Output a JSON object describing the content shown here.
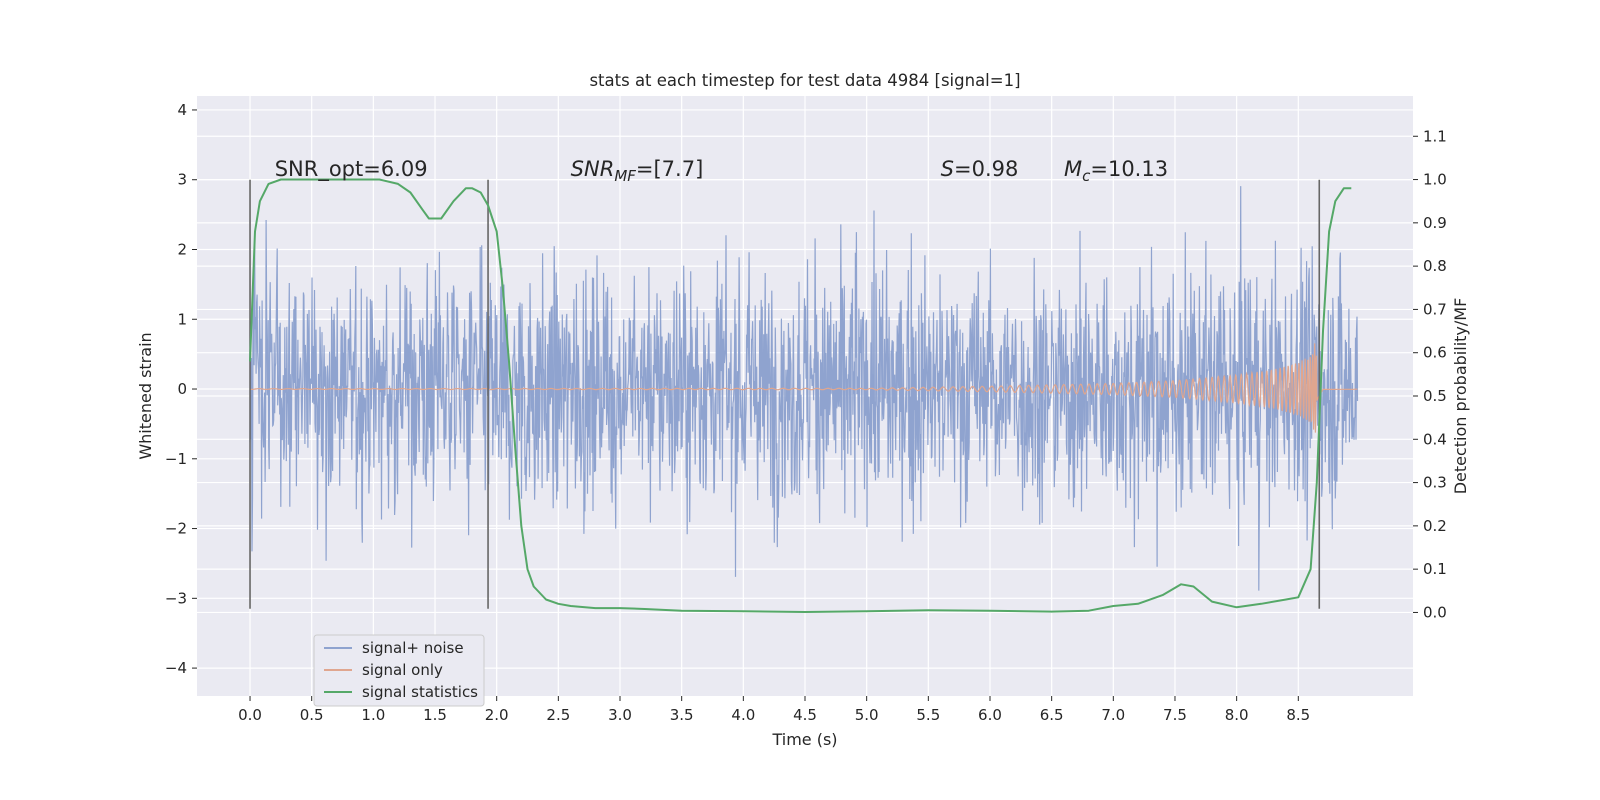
{
  "chart_data": {
    "type": "line",
    "title": "stats at each timestep for test data 4984 [signal=1]",
    "xlabel": "Time (s)",
    "ylabel": "Whitened strain",
    "y2label": "Detection probability/MF",
    "xlim": [
      -0.43,
      9.43
    ],
    "ylim": [
      -4.4,
      4.2
    ],
    "y2lim": [
      -0.193,
      1.193
    ],
    "xticks": [
      0.0,
      0.5,
      1.0,
      1.5,
      2.0,
      2.5,
      3.0,
      3.5,
      4.0,
      4.5,
      5.0,
      5.5,
      6.0,
      6.5,
      7.0,
      7.5,
      8.0,
      8.5
    ],
    "xtick_labels": [
      "0.0",
      "0.5",
      "1.0",
      "1.5",
      "2.0",
      "2.5",
      "3.0",
      "3.5",
      "4.0",
      "4.5",
      "5.0",
      "5.5",
      "6.0",
      "6.5",
      "7.0",
      "7.5",
      "8.0",
      "8.5"
    ],
    "yticks": [
      -4,
      -3,
      -2,
      -1,
      0,
      1,
      2,
      3,
      4
    ],
    "ytick_labels": [
      "−4",
      "−3",
      "−2",
      "−1",
      "0",
      "1",
      "2",
      "3",
      "4"
    ],
    "y2ticks": [
      0.0,
      0.1,
      0.2,
      0.3,
      0.4,
      0.5,
      0.6,
      0.7,
      0.8,
      0.9,
      1.0,
      1.1
    ],
    "y2tick_labels": [
      "0.0",
      "0.1",
      "0.2",
      "0.3",
      "0.4",
      "0.5",
      "0.6",
      "0.7",
      "0.8",
      "0.9",
      "1.0",
      "1.1"
    ],
    "grid": true,
    "legend_position": "lower-left",
    "series": [
      {
        "name": "signal+ noise",
        "axis": "left",
        "color": "#8fa3cf",
        "x_range": [
          0,
          8.98
        ],
        "std": 1.0
      },
      {
        "name": "signal only",
        "axis": "left",
        "color": "#e0a68f",
        "x": [
          0.0,
          5.0,
          6.0,
          7.0,
          7.5,
          8.0,
          8.3,
          8.5,
          8.6,
          8.64,
          8.67,
          8.7,
          8.98
        ],
        "amplitude": [
          0.005,
          0.01,
          0.04,
          0.08,
          0.12,
          0.2,
          0.28,
          0.38,
          0.48,
          0.7,
          0.3,
          0.02,
          0.01
        ]
      },
      {
        "name": "signal statistics",
        "axis": "right",
        "color": "#55a868",
        "x": [
          0.0,
          0.04,
          0.08,
          0.15,
          0.25,
          0.5,
          0.8,
          1.05,
          1.2,
          1.3,
          1.4,
          1.45,
          1.55,
          1.65,
          1.75,
          1.8,
          1.87,
          1.93,
          2.0,
          2.05,
          2.1,
          2.15,
          2.2,
          2.25,
          2.3,
          2.4,
          2.5,
          2.6,
          2.8,
          3.0,
          3.2,
          3.5,
          4.0,
          4.5,
          5.0,
          5.5,
          6.0,
          6.5,
          6.8,
          7.0,
          7.2,
          7.4,
          7.55,
          7.65,
          7.8,
          8.0,
          8.2,
          8.4,
          8.5,
          8.6,
          8.65,
          8.7,
          8.75,
          8.8,
          8.87,
          8.93
        ],
        "y": [
          0.58,
          0.88,
          0.95,
          0.99,
          1.0,
          1.0,
          1.0,
          1.0,
          0.99,
          0.97,
          0.93,
          0.91,
          0.91,
          0.95,
          0.98,
          0.98,
          0.97,
          0.94,
          0.88,
          0.75,
          0.58,
          0.38,
          0.2,
          0.1,
          0.06,
          0.03,
          0.02,
          0.015,
          0.01,
          0.01,
          0.008,
          0.004,
          0.003,
          0.001,
          0.003,
          0.005,
          0.004,
          0.002,
          0.004,
          0.015,
          0.02,
          0.04,
          0.065,
          0.06,
          0.025,
          0.012,
          0.02,
          0.03,
          0.035,
          0.1,
          0.3,
          0.65,
          0.88,
          0.95,
          0.98,
          0.98
        ]
      }
    ],
    "vertical_markers": [
      0.0,
      1.93,
      8.67
    ],
    "vertical_marker_yrange": [
      -3.15,
      3.0
    ],
    "annotations": [
      {
        "text": "SNR_opt=6.09",
        "x": 0.2,
        "y": 3.05
      },
      {
        "text": "SNR",
        "sub": "MF",
        "tail": "=[7.7]",
        "italic": true,
        "x": 2.6,
        "y": 3.05
      },
      {
        "text": "S",
        "tail": "=0.98",
        "italic": true,
        "x": 5.6,
        "y": 3.05
      },
      {
        "text": "M",
        "sub": "c",
        "tail": "=10.13",
        "italic": true,
        "x": 6.6,
        "y": 3.05
      }
    ]
  }
}
